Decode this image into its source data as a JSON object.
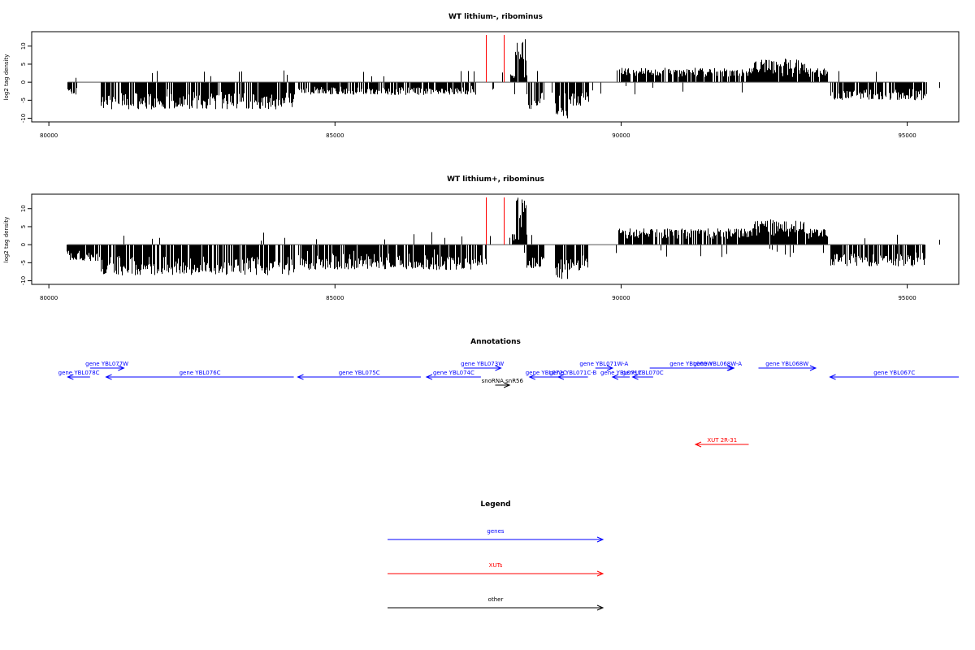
{
  "chart_data": [
    {
      "type": "bar",
      "title": "WT lithium-, ribominus",
      "xlabel": "",
      "ylabel": "log2 tag density",
      "xlim": [
        79700,
        95900
      ],
      "ylim": [
        -11,
        14
      ],
      "xticks": [
        80000,
        85000,
        90000,
        95000
      ],
      "yticks": [
        10,
        5,
        0,
        -5,
        -10
      ],
      "bar_color": "#000000",
      "markers": [
        {
          "x": 87640,
          "color": "#ff0000"
        },
        {
          "x": 87950,
          "color": "#ff0000"
        }
      ],
      "segments": [
        {
          "x": [
            80330,
            80480
          ],
          "value": -3.5
        },
        {
          "x": [
            80900,
            84280
          ],
          "value": -7.5
        },
        {
          "x": [
            84350,
            87450
          ],
          "value": -3.5
        },
        {
          "x": [
            88150,
            88330
          ],
          "value": 12
        },
        {
          "x": [
            88050,
            88350
          ],
          "value": 2.5
        },
        {
          "x": [
            88350,
            88650
          ],
          "value": -7.5
        },
        {
          "x": [
            88850,
            89050
          ],
          "value": -10
        },
        {
          "x": [
            89050,
            89420
          ],
          "value": -6.5
        },
        {
          "x": [
            89950,
            93600
          ],
          "value": 4
        },
        {
          "x": [
            92300,
            93200
          ],
          "value": 6.5
        },
        {
          "x": [
            93650,
            95300
          ],
          "value": -5
        }
      ]
    },
    {
      "type": "bar",
      "title": "WT lithium+, ribominus",
      "xlabel": "",
      "ylabel": "log2 tag density",
      "xlim": [
        79700,
        95900
      ],
      "ylim": [
        -11,
        14
      ],
      "xticks": [
        80000,
        85000,
        90000,
        95000
      ],
      "yticks": [
        10,
        5,
        0,
        -5,
        -10
      ],
      "bar_color": "#000000",
      "markers": [
        {
          "x": 87640,
          "color": "#ff0000"
        },
        {
          "x": 87950,
          "color": "#ff0000"
        }
      ],
      "segments": [
        {
          "x": [
            80330,
            80900
          ],
          "value": -4.5
        },
        {
          "x": [
            80900,
            84280
          ],
          "value": -8.5
        },
        {
          "x": [
            84350,
            87640
          ],
          "value": -7
        },
        {
          "x": [
            88150,
            88330
          ],
          "value": 13.5
        },
        {
          "x": [
            88050,
            88350
          ],
          "value": 3
        },
        {
          "x": [
            88350,
            88650
          ],
          "value": -7.5
        },
        {
          "x": [
            88850,
            89050
          ],
          "value": -9.5
        },
        {
          "x": [
            89050,
            89420
          ],
          "value": -7.5
        },
        {
          "x": [
            89950,
            93600
          ],
          "value": 4.5
        },
        {
          "x": [
            92300,
            93200
          ],
          "value": 7
        },
        {
          "x": [
            93650,
            95300
          ],
          "value": -6
        }
      ]
    }
  ],
  "annotations": {
    "title": "Annotations",
    "genes_color": "#0000ff",
    "xuts_color": "#ff0000",
    "other_color": "#000000",
    "items": [
      {
        "label": "gene YBL078C",
        "start": 80330,
        "end": 80720,
        "strand": "-",
        "row": 1,
        "kind": "gene"
      },
      {
        "label": "gene YBL077W",
        "start": 80720,
        "end": 81310,
        "strand": "+",
        "row": 0,
        "kind": "gene"
      },
      {
        "label": "gene YBL076C",
        "start": 81000,
        "end": 84280,
        "strand": "-",
        "row": 1,
        "kind": "gene"
      },
      {
        "label": "gene YBL075C",
        "start": 84350,
        "end": 86500,
        "strand": "-",
        "row": 1,
        "kind": "gene"
      },
      {
        "label": "gene YBL074C",
        "start": 86600,
        "end": 87550,
        "strand": "-",
        "row": 1,
        "kind": "gene"
      },
      {
        "label": "gene YBL073W",
        "start": 87250,
        "end": 87900,
        "strand": "+",
        "row": 0,
        "kind": "gene"
      },
      {
        "label": "snoRNA snR56",
        "start": 87800,
        "end": 88050,
        "strand": "+",
        "row": 2,
        "kind": "other"
      },
      {
        "label": "gene YBL072C",
        "start": 88400,
        "end": 88980,
        "strand": "-",
        "row": 1,
        "kind": "gene"
      },
      {
        "label": "gene YBL071C-B",
        "start": 88900,
        "end": 89420,
        "strand": "-",
        "row": 1,
        "kind": "gene"
      },
      {
        "label": "gene YBL071W-A",
        "start": 89550,
        "end": 89850,
        "strand": "+",
        "row": 0,
        "kind": "gene"
      },
      {
        "label": "gene YBL071C",
        "start": 89850,
        "end": 90150,
        "strand": "-",
        "row": 1,
        "kind": "gene"
      },
      {
        "label": "gene YBL070C",
        "start": 90200,
        "end": 90560,
        "strand": "-",
        "row": 1,
        "kind": "gene"
      },
      {
        "label": "gene YBL069W",
        "start": 90500,
        "end": 91950,
        "strand": "+",
        "row": 0,
        "kind": "gene"
      },
      {
        "label": "gene YBL068W-A",
        "start": 91400,
        "end": 91970,
        "strand": "+",
        "row": 0,
        "kind": "gene"
      },
      {
        "label": "gene YBL068W",
        "start": 92400,
        "end": 93400,
        "strand": "+",
        "row": 0,
        "kind": "gene"
      },
      {
        "label": "gene YBL067C",
        "start": 93650,
        "end": 95900,
        "strand": "-",
        "row": 1,
        "kind": "gene"
      },
      {
        "label": "XUT 2R-31",
        "start": 91300,
        "end": 92230,
        "strand": "-",
        "row": 3,
        "kind": "xut"
      }
    ]
  },
  "legend": {
    "title": "Legend",
    "items": [
      {
        "label": "genes",
        "color": "#0000ff"
      },
      {
        "label": "XUTs",
        "color": "#ff0000"
      },
      {
        "label": "other",
        "color": "#000000"
      }
    ]
  }
}
